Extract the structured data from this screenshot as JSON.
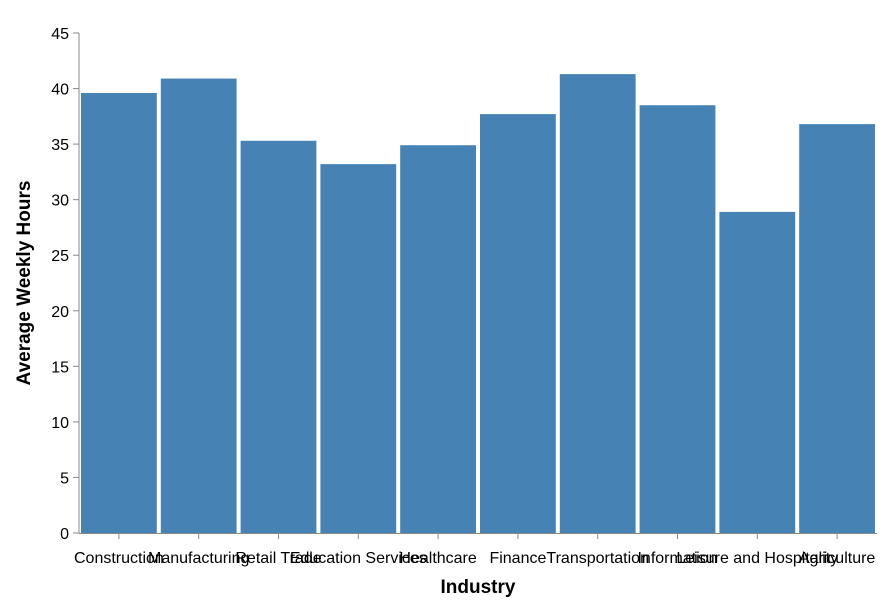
{
  "chart_data": {
    "type": "bar",
    "categories": [
      "Construction",
      "Manufacturing",
      "Retail Trade",
      "Education Services",
      "Healthcare",
      "Finance",
      "Transportation",
      "Information",
      "Leisure and Hospitality",
      "Agriculture"
    ],
    "values": [
      39.6,
      40.9,
      35.3,
      33.2,
      34.9,
      37.7,
      41.3,
      38.5,
      28.9,
      36.8
    ],
    "xlabel": "Industry",
    "ylabel": "Average Weekly Hours",
    "ylim": [
      0,
      45
    ],
    "yticks": [
      0,
      5,
      10,
      15,
      20,
      25,
      30,
      35,
      40,
      45
    ],
    "grid": false,
    "colors": {
      "bar": "#4682b4",
      "axis": "#888888"
    }
  }
}
